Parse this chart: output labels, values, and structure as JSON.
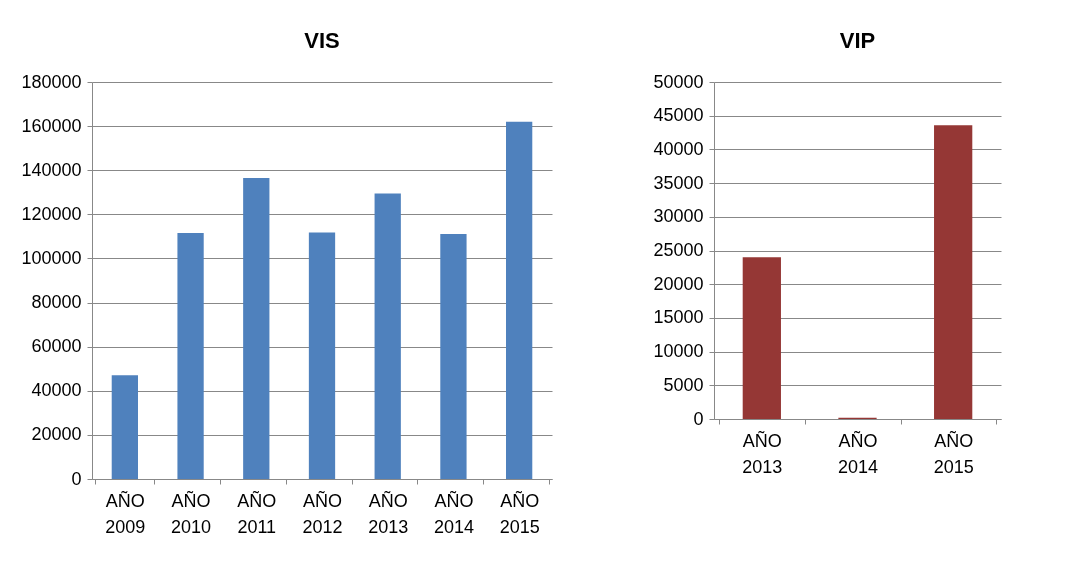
{
  "chart_data": [
    {
      "type": "bar",
      "title": "VIS",
      "categories": [
        "AÑO 2009",
        "AÑO 2010",
        "AÑO 2011",
        "AÑO 2012",
        "AÑO 2013",
        "AÑO 2014",
        "AÑO 2015"
      ],
      "values": [
        47000,
        111500,
        136500,
        111800,
        129500,
        111100,
        162000
      ],
      "color": "#4f81bd",
      "ylim": [
        0,
        180000
      ],
      "yticks": [
        0,
        20000,
        40000,
        60000,
        80000,
        100000,
        120000,
        140000,
        160000,
        180000
      ],
      "grid": "y"
    },
    {
      "type": "bar",
      "title": "VIP",
      "categories": [
        "AÑO 2013",
        "AÑO 2014",
        "AÑO 2015"
      ],
      "values": [
        24000,
        200,
        43600
      ],
      "color": "#953735",
      "ylim": [
        0,
        50000
      ],
      "yticks": [
        0,
        5000,
        10000,
        15000,
        20000,
        25000,
        30000,
        35000,
        40000,
        45000,
        50000
      ],
      "grid": "y"
    }
  ]
}
